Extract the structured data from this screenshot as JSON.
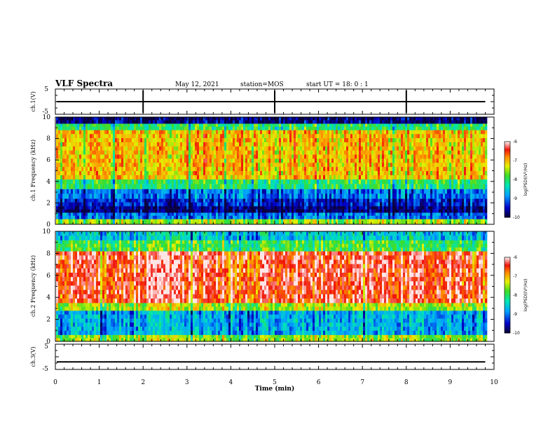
{
  "header": {
    "title": "VLF Spectra",
    "date": "May 12, 2021",
    "station": "station=MOS",
    "start": "start UT = 18: 0 : 1"
  },
  "chart_data": [
    {
      "type": "line",
      "panel": "ch1-waveform",
      "ylabel": "ch.1(V)",
      "ylim": [
        -5,
        5
      ],
      "y_tick_labels": [
        "5",
        "-5"
      ],
      "baseline_value": 0,
      "spike_times_min": [
        2,
        5,
        8
      ]
    },
    {
      "type": "heatmap",
      "panel": "ch1-spectrogram",
      "ylabel": "ch.1 Frequency (kHz)",
      "ylim": [
        0,
        10
      ],
      "y_ticks": [
        0,
        2,
        4,
        6,
        8,
        10
      ],
      "colorbar": {
        "label": "log(PSD)(V²/Hz)",
        "range": [
          -10,
          -6
        ],
        "ticks": [
          "-6",
          "-7",
          "-8",
          "-9",
          "-10"
        ]
      },
      "bands": [
        {
          "from_khz": 0,
          "to_khz": 0.5,
          "level": -7.5
        },
        {
          "from_khz": 0.5,
          "to_khz": 1.1,
          "level": -9
        },
        {
          "from_khz": 1.1,
          "to_khz": 1.7,
          "level": -9.8
        },
        {
          "from_khz": 1.7,
          "to_khz": 2.4,
          "level": -9.4
        },
        {
          "from_khz": 2.4,
          "to_khz": 3.3,
          "level": -9
        },
        {
          "from_khz": 3.3,
          "to_khz": 4.2,
          "level": -8
        },
        {
          "from_khz": 4.2,
          "to_khz": 8.8,
          "level": -7
        },
        {
          "from_khz": 8.8,
          "to_khz": 9.4,
          "level": -8
        },
        {
          "from_khz": 9.4,
          "to_khz": 10,
          "level": -9.8
        }
      ]
    },
    {
      "type": "heatmap",
      "panel": "ch2-spectrogram",
      "ylabel": "ch.2 Frequency (kHz)",
      "ylim": [
        0,
        10
      ],
      "y_ticks": [
        0,
        2,
        4,
        6,
        8,
        10
      ],
      "colorbar": {
        "label": "log(PSD)(V²/Hz)",
        "range": [
          -10,
          -6
        ],
        "ticks": [
          "-6",
          "-7",
          "-8",
          "-9",
          "-10"
        ]
      },
      "bands": [
        {
          "from_khz": 0,
          "to_khz": 0.6,
          "level": -7.5
        },
        {
          "from_khz": 0.6,
          "to_khz": 2.8,
          "level": -8.7
        },
        {
          "from_khz": 2.8,
          "to_khz": 3.5,
          "level": -7.4
        },
        {
          "from_khz": 3.5,
          "to_khz": 8.2,
          "level": -6.3
        },
        {
          "from_khz": 8.2,
          "to_khz": 9.2,
          "level": -7.8
        },
        {
          "from_khz": 9.2,
          "to_khz": 10,
          "level": -8.5
        }
      ]
    },
    {
      "type": "line",
      "panel": "ch3-waveform",
      "ylabel": "ch.3(V)",
      "ylim": [
        -5,
        5
      ],
      "y_tick_labels": [
        "5",
        "-5"
      ],
      "baseline_value": -2
    }
  ],
  "x_axis": {
    "xlabel": "Time (min)",
    "xlim": [
      0,
      10
    ],
    "ticks": [
      "0",
      "1",
      "2",
      "3",
      "4",
      "5",
      "6",
      "7",
      "8",
      "9",
      "10"
    ],
    "data_end_min": 9.8
  }
}
